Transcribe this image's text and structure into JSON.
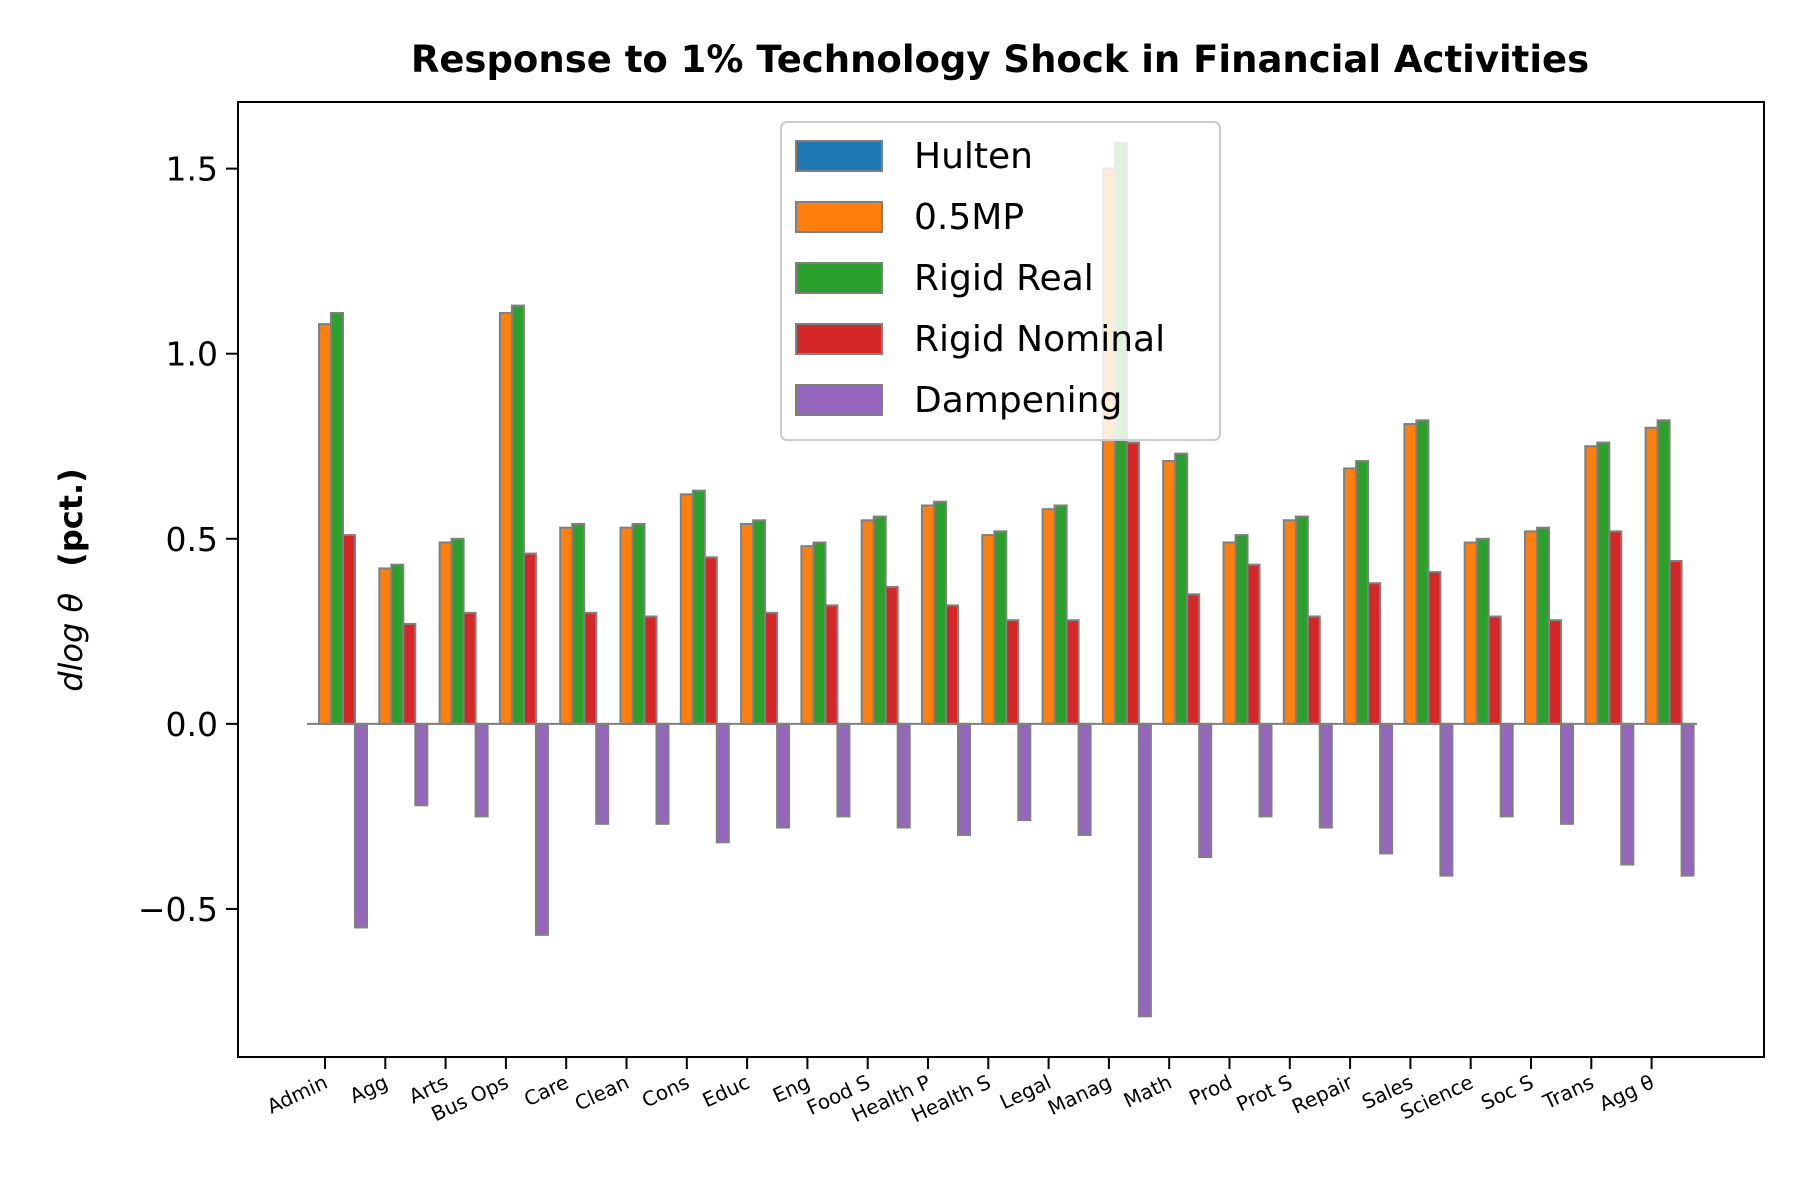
{
  "chart_data": {
    "type": "bar",
    "title": "Response to 1% Technology Shock in Financial Activities",
    "ylabel_main": "dlog θ",
    "ylabel_unit": "(pct.)",
    "xlabel": "",
    "ylim": [
      -0.9,
      1.68
    ],
    "yticks": [
      -0.5,
      0.0,
      0.5,
      1.0,
      1.5
    ],
    "ytick_labels": [
      "−0.5",
      "0.0",
      "0.5",
      "1.0",
      "1.5"
    ],
    "categories": [
      "Admin",
      "Agg",
      "Arts",
      "Bus Ops",
      "Care",
      "Clean",
      "Cons",
      "Educ",
      "Eng",
      "Food S",
      "Health P",
      "Health S",
      "Legal",
      "Manag",
      "Math",
      "Prod",
      "Prot S",
      "Repair",
      "Sales",
      "Science",
      "Soc S",
      "Trans",
      "Agg θ"
    ],
    "series": [
      {
        "name": "Hulten",
        "color": "#1f77b4",
        "values": [
          0,
          0,
          0,
          0,
          0,
          0,
          0,
          0,
          0,
          0,
          0,
          0,
          0,
          0,
          0,
          0,
          0,
          0,
          0,
          0,
          0,
          0,
          0
        ]
      },
      {
        "name": "0.5MP",
        "color": "#ff7f0e",
        "values": [
          1.08,
          0.42,
          0.49,
          1.11,
          0.53,
          0.53,
          0.62,
          0.54,
          0.48,
          0.55,
          0.59,
          0.51,
          0.58,
          1.5,
          0.71,
          0.49,
          0.55,
          0.69,
          0.81,
          0.49,
          0.52,
          0.75,
          0.8
        ]
      },
      {
        "name": "Rigid Real",
        "color": "#2ca02c",
        "values": [
          1.11,
          0.43,
          0.5,
          1.13,
          0.54,
          0.54,
          0.63,
          0.55,
          0.49,
          0.56,
          0.6,
          0.52,
          0.59,
          1.57,
          0.73,
          0.51,
          0.56,
          0.71,
          0.82,
          0.5,
          0.53,
          0.76,
          0.82
        ]
      },
      {
        "name": "Rigid Nominal",
        "color": "#d62728",
        "values": [
          0.51,
          0.27,
          0.3,
          0.46,
          0.3,
          0.29,
          0.45,
          0.3,
          0.32,
          0.37,
          0.32,
          0.28,
          0.28,
          0.76,
          0.35,
          0.43,
          0.29,
          0.38,
          0.41,
          0.29,
          0.28,
          0.52,
          0.44
        ]
      },
      {
        "name": "Dampening",
        "color": "#9467bd",
        "values": [
          -0.55,
          -0.22,
          -0.25,
          -0.57,
          -0.27,
          -0.27,
          -0.32,
          -0.28,
          -0.25,
          -0.28,
          -0.3,
          -0.26,
          -0.3,
          -0.79,
          -0.36,
          -0.25,
          -0.28,
          -0.35,
          -0.41,
          -0.25,
          -0.27,
          -0.38,
          -0.41
        ]
      }
    ],
    "legend_position": "upper-center",
    "grid": false
  }
}
